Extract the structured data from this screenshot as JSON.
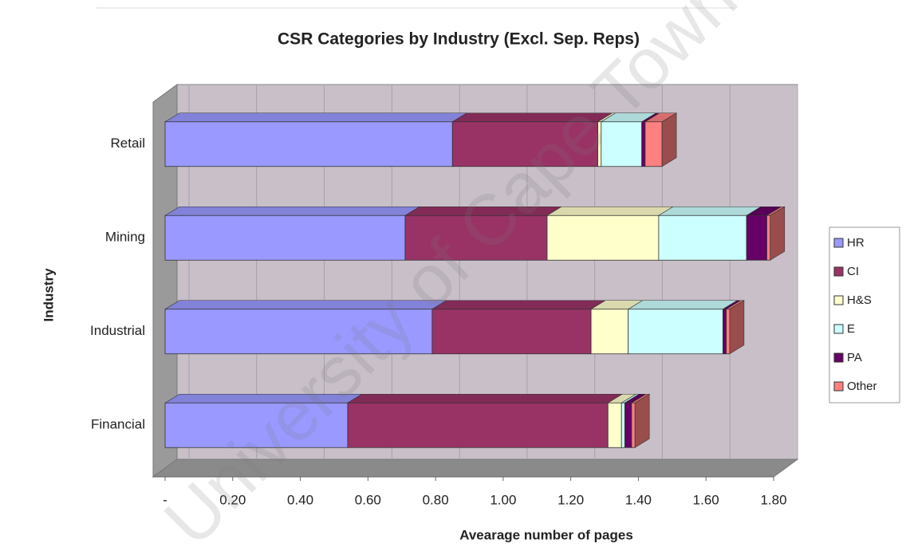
{
  "chart_data": {
    "type": "bar3d_stacked_horizontal",
    "title": "CSR Categories by Industry (Excl. Sep. Reps)",
    "x_label": "Avearage number of pages",
    "y_label": "Industry",
    "watermark": "University of Cape Town",
    "categories": [
      "Retail",
      "Mining",
      "Industrial",
      "Financial"
    ],
    "series": [
      {
        "name": "HR",
        "color": "#9999ff",
        "values": [
          0.85,
          0.71,
          0.79,
          0.54
        ]
      },
      {
        "name": "CI",
        "color": "#993366",
        "values": [
          0.43,
          0.42,
          0.47,
          0.77
        ]
      },
      {
        "name": "H&S",
        "color": "#ffffcc",
        "values": [
          0.01,
          0.33,
          0.11,
          0.04
        ]
      },
      {
        "name": "E",
        "color": "#ccffff",
        "values": [
          0.12,
          0.26,
          0.28,
          0.01
        ]
      },
      {
        "name": "PA",
        "color": "#660066",
        "values": [
          0.01,
          0.06,
          0.01,
          0.02
        ]
      },
      {
        "name": "Other",
        "color": "#ff8080",
        "values": [
          0.05,
          0.01,
          0.01,
          0.01
        ]
      }
    ],
    "xlim": [
      0,
      1.8
    ],
    "xticks": [
      {
        "value": 0,
        "label": "-"
      },
      {
        "value": 0.2,
        "label": "0.20"
      },
      {
        "value": 0.4,
        "label": "0.40"
      },
      {
        "value": 0.6,
        "label": "0.60"
      },
      {
        "value": 0.8,
        "label": "0.80"
      },
      {
        "value": 1.0,
        "label": "1.00"
      },
      {
        "value": 1.2,
        "label": "1.20"
      },
      {
        "value": 1.4,
        "label": "1.40"
      },
      {
        "value": 1.6,
        "label": "1.60"
      },
      {
        "value": 1.8,
        "label": "1.80"
      }
    ],
    "grid": true,
    "legend": "right"
  }
}
